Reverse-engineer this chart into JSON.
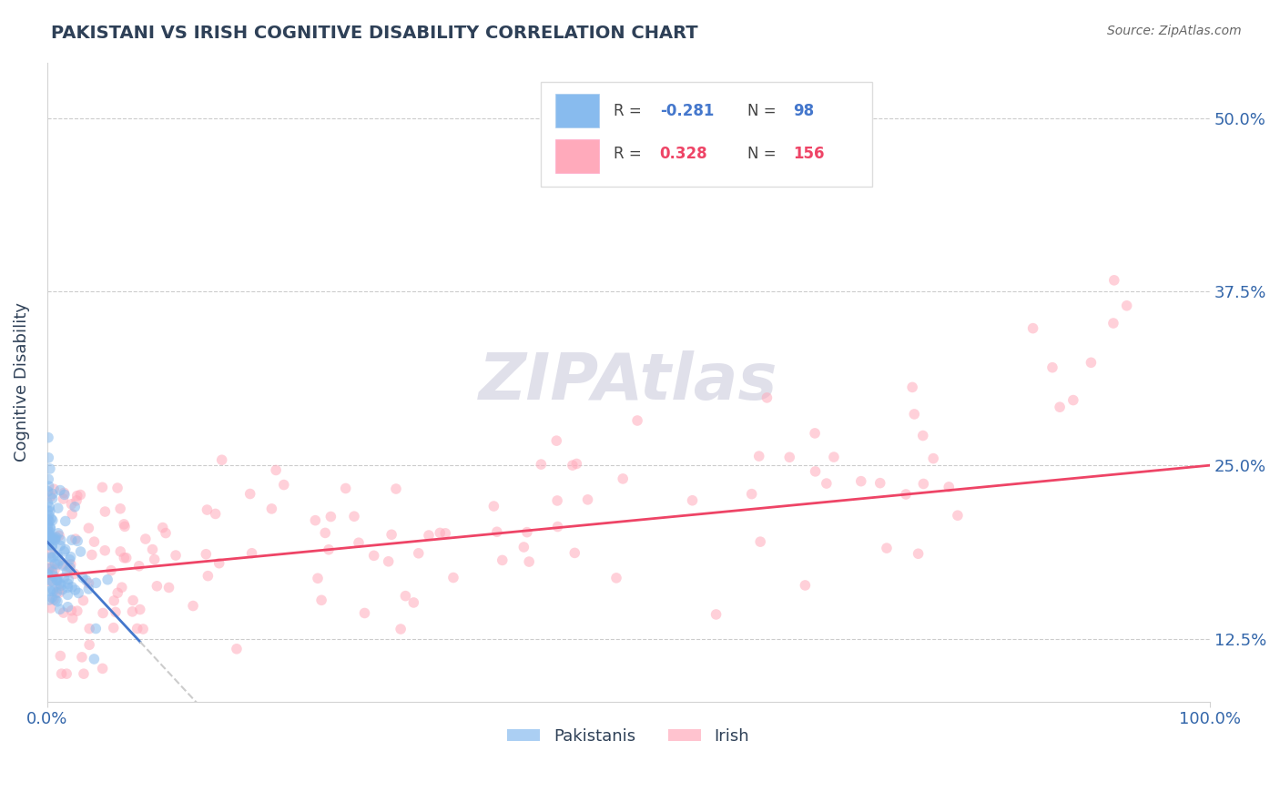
{
  "title": "PAKISTANI VS IRISH COGNITIVE DISABILITY CORRELATION CHART",
  "source": "Source: ZipAtlas.com",
  "ylabel": "Cognitive Disability",
  "legend_pakistani_label": "Pakistanis",
  "legend_irish_label": "Irish",
  "r_pakistani": -0.281,
  "n_pakistani": 98,
  "r_irish": 0.328,
  "n_irish": 156,
  "xlim": [
    0.0,
    100.0
  ],
  "ylim": [
    8.0,
    54.0
  ],
  "yticks": [
    12.5,
    25.0,
    37.5,
    50.0
  ],
  "xtick_labels": [
    "0.0%",
    "100.0%"
  ],
  "ytick_labels": [
    "12.5%",
    "25.0%",
    "37.5%",
    "50.0%"
  ],
  "title_color": "#2E4057",
  "source_color": "#666666",
  "axis_label_color": "#2E4057",
  "tick_color": "#3366AA",
  "blue_color": "#88BBEE",
  "pink_color": "#FFAABB",
  "blue_line_color": "#4477CC",
  "pink_line_color": "#EE4466",
  "dashed_line_color": "#CCCCCC",
  "watermark_color": "#CCCCDD",
  "background_color": "#FFFFFF"
}
